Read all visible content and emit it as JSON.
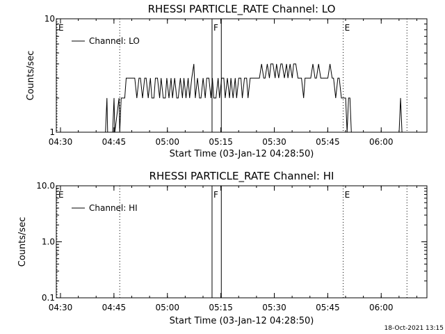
{
  "footer": {
    "timestamp": "18-Oct-2021 13:15"
  },
  "chart_data": [
    {
      "type": "line",
      "title": "RHESSI PARTICLE_RATE Channel: LO",
      "xlabel": "Start Time (03-Jan-12 04:28:50)",
      "ylabel": "Counts/sec",
      "x_unit": "minutes after 04:28:50",
      "xlim": [
        0,
        104
      ],
      "ylim": [
        1,
        10
      ],
      "yscale": "log",
      "x_tick_values": [
        1.17,
        16.17,
        31.17,
        46.17,
        61.17,
        76.17,
        91.17
      ],
      "x_tick_labels": [
        "04:30",
        "04:45",
        "05:00",
        "05:15",
        "05:30",
        "05:45",
        "06:00"
      ],
      "y_tick_values": [
        1,
        10
      ],
      "y_tick_labels": [
        "1",
        "10"
      ],
      "legend": {
        "position": "top-left",
        "entries": [
          "Channel: LO"
        ]
      },
      "markers": [
        {
          "x": 0,
          "label": "E",
          "style": "dotted"
        },
        {
          "x": 17.8,
          "label": "",
          "style": "dotted"
        },
        {
          "x": 43.7,
          "label": "F",
          "style": "solid"
        },
        {
          "x": 46.3,
          "label": "",
          "style": "solid"
        },
        {
          "x": 80.5,
          "label": "E",
          "style": "dotted"
        },
        {
          "x": 98.4,
          "label": "",
          "style": "dotted"
        }
      ],
      "series": [
        {
          "name": "Channel: LO",
          "x": [
            13.8,
            14.2,
            14.4,
            15.8,
            16.2,
            16.4,
            17.6,
            17.8,
            18.2,
            19.2,
            19.6,
            20.0,
            20.6,
            21.4,
            22.0,
            22.6,
            23.2,
            23.6,
            24.2,
            24.8,
            25.2,
            25.8,
            26.4,
            26.8,
            27.4,
            27.8,
            28.4,
            29.0,
            29.4,
            30.0,
            30.6,
            31.0,
            31.6,
            32.2,
            32.6,
            33.2,
            33.8,
            34.2,
            34.8,
            35.4,
            35.8,
            36.4,
            37.0,
            37.4,
            38.0,
            38.6,
            39.0,
            39.6,
            40.2,
            40.6,
            41.2,
            41.8,
            42.2,
            42.8,
            43.4,
            43.8,
            44.2,
            44.8,
            45.4,
            45.8,
            46.4,
            47.0,
            47.4,
            48.0,
            48.6,
            49.0,
            49.6,
            50.2,
            50.6,
            51.2,
            51.8,
            52.2,
            52.8,
            53.4,
            53.8,
            54.4,
            55.0,
            55.4,
            56.0,
            56.6,
            57.0,
            57.6,
            58.2,
            58.6,
            59.2,
            59.8,
            60.2,
            60.8,
            61.4,
            61.8,
            62.4,
            63.0,
            63.4,
            64.0,
            64.6,
            65.0,
            65.6,
            66.2,
            66.6,
            67.2,
            67.8,
            68.2,
            68.8,
            69.4,
            69.8,
            70.4,
            71.0,
            71.4,
            72.0,
            72.6,
            73.0,
            73.6,
            74.2,
            74.6,
            75.2,
            75.8,
            76.2,
            76.8,
            77.4,
            77.8,
            78.4,
            79.0,
            79.4,
            80.0,
            80.4,
            80.8,
            81.2,
            81.6,
            82.0,
            82.4,
            82.8,
            83.2,
            96.2,
            96.6,
            97.0
          ],
          "values": [
            1,
            2,
            1,
            1,
            2,
            1,
            2,
            1,
            2,
            2,
            3,
            3,
            3,
            3,
            3,
            2,
            3,
            3,
            2,
            3,
            3,
            2,
            3,
            2,
            2,
            3,
            3,
            2,
            3,
            2,
            2,
            3,
            2,
            3,
            2,
            3,
            2,
            2,
            3,
            2,
            3,
            2,
            3,
            2,
            3,
            4,
            2,
            3,
            2,
            2,
            3,
            2,
            3,
            3,
            2,
            3,
            2,
            2,
            3,
            2,
            3,
            3,
            2,
            3,
            2,
            3,
            2,
            3,
            2,
            3,
            3,
            2,
            3,
            3,
            2,
            3,
            3,
            3,
            3,
            3,
            3,
            4,
            3,
            3,
            4,
            3,
            4,
            4,
            3,
            4,
            3,
            4,
            4,
            3,
            4,
            3,
            4,
            3,
            4,
            4,
            3,
            3,
            3,
            2,
            3,
            3,
            3,
            3,
            4,
            3,
            3,
            4,
            3,
            3,
            3,
            3,
            3,
            4,
            3,
            3,
            2,
            3,
            3,
            2,
            2,
            2,
            2,
            1,
            2,
            2,
            1,
            1,
            1,
            2,
            1
          ]
        }
      ]
    },
    {
      "type": "line",
      "title": "RHESSI PARTICLE_RATE Channel: HI",
      "xlabel": "Start Time (03-Jan-12 04:28:50)",
      "ylabel": "Counts/sec",
      "x_unit": "minutes after 04:28:50",
      "xlim": [
        0,
        104
      ],
      "ylim": [
        0.1,
        10
      ],
      "yscale": "log",
      "x_tick_values": [
        1.17,
        16.17,
        31.17,
        46.17,
        61.17,
        76.17,
        91.17
      ],
      "x_tick_labels": [
        "04:30",
        "04:45",
        "05:00",
        "05:15",
        "05:30",
        "05:45",
        "06:00"
      ],
      "y_tick_values": [
        0.1,
        1,
        10
      ],
      "y_tick_labels": [
        "0.1",
        "1.0",
        "10.0"
      ],
      "legend": {
        "position": "top-left",
        "entries": [
          "Channel: HI"
        ]
      },
      "markers": [
        {
          "x": 0,
          "label": "E",
          "style": "dotted"
        },
        {
          "x": 17.8,
          "label": "",
          "style": "dotted"
        },
        {
          "x": 43.7,
          "label": "F",
          "style": "solid"
        },
        {
          "x": 46.3,
          "label": "",
          "style": "solid"
        },
        {
          "x": 80.5,
          "label": "E",
          "style": "dotted"
        },
        {
          "x": 98.4,
          "label": "",
          "style": "dotted"
        }
      ],
      "series": [
        {
          "name": "Channel: HI",
          "x": [],
          "values": []
        }
      ]
    }
  ]
}
